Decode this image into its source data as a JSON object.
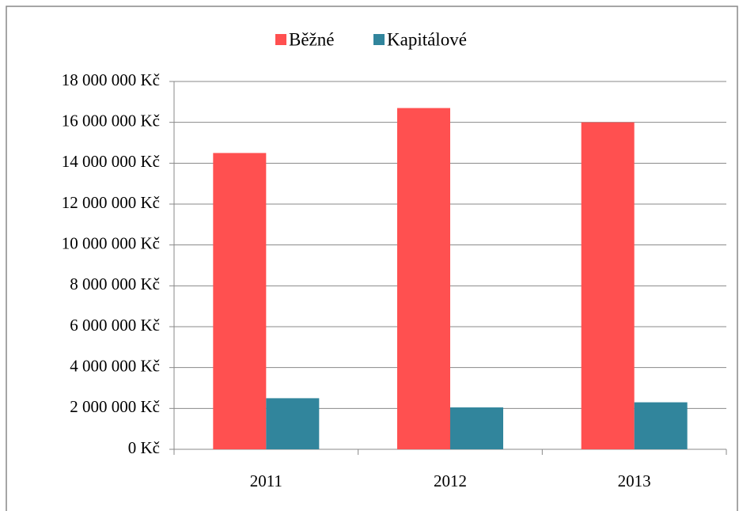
{
  "chart_data": {
    "type": "bar",
    "categories": [
      "2011",
      "2012",
      "2013"
    ],
    "series": [
      {
        "name": "Běžné",
        "color": "#ff5050",
        "values": [
          14500000,
          16700000,
          16000000
        ]
      },
      {
        "name": "Kapitálové",
        "color": "#31859c",
        "values": [
          2500000,
          2050000,
          2300000
        ]
      }
    ],
    "ylim": [
      0,
      18000000
    ],
    "yticks": [
      {
        "value": 0,
        "label": "0 Kč"
      },
      {
        "value": 2000000,
        "label": "2 000 000 Kč"
      },
      {
        "value": 4000000,
        "label": "4 000 000 Kč"
      },
      {
        "value": 6000000,
        "label": "6 000 000 Kč"
      },
      {
        "value": 8000000,
        "label": "8 000 000 Kč"
      },
      {
        "value": 10000000,
        "label": "10 000 000 Kč"
      },
      {
        "value": 12000000,
        "label": "12 000 000 Kč"
      },
      {
        "value": 14000000,
        "label": "14 000 000 Kč"
      },
      {
        "value": 16000000,
        "label": "16 000 000 Kč"
      },
      {
        "value": 18000000,
        "label": "18 000 000 Kč"
      }
    ],
    "grid": true,
    "legend": "top"
  }
}
